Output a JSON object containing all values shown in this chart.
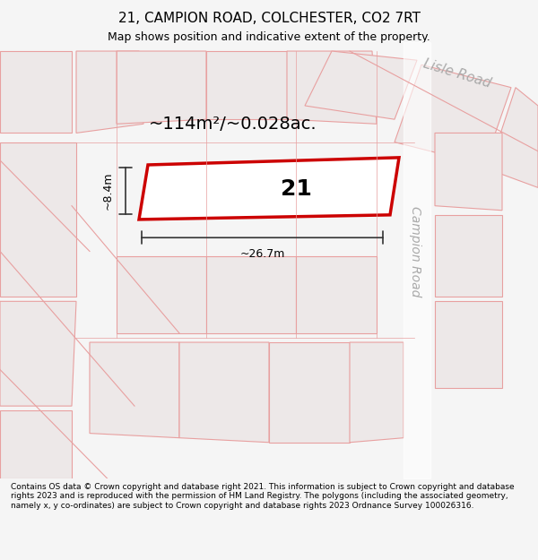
{
  "title": "21, CAMPION ROAD, COLCHESTER, CO2 7RT",
  "subtitle": "Map shows position and indicative extent of the property.",
  "footer": "Contains OS data © Crown copyright and database right 2021. This information is subject to Crown copyright and database rights 2023 and is reproduced with the permission of HM Land Registry. The polygons (including the associated geometry, namely x, y co-ordinates) are subject to Crown copyright and database rights 2023 Ordnance Survey 100026316.",
  "bg_color": "#f5f5f5",
  "map_bg": "#f0eeee",
  "road_color": "#ffffff",
  "block_outline_color": "#e8a0a0",
  "block_fill_color": "#e8d0d0",
  "highlight_color": "#cc0000",
  "highlight_fill": "#ffffff",
  "dim_color": "#333333",
  "road_label_color": "#aaaaaa",
  "area_text": "~114m²/~0.028ac.",
  "width_label": "~26.7m",
  "height_label": "~8.4m",
  "number_label": "21",
  "campion_road_label": "Campion Road",
  "lisle_road_label": "Lisle Road"
}
